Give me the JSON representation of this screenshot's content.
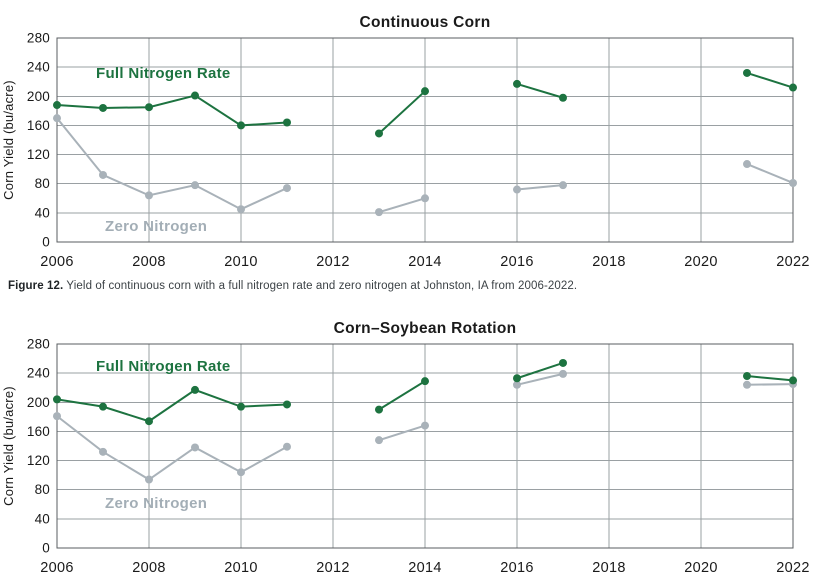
{
  "figure": {
    "caption_label": "Figure 12.",
    "caption_text": " Yield of continuous corn with a full nitrogen rate and zero nitrogen at Johnston, IA from 2006-2022."
  },
  "colors": {
    "full_nitrogen": "#1d7340",
    "zero_nitrogen": "#a9b2b9",
    "zero_nitrogen_label": "#a3aeb6",
    "grid": "#9aa0a3",
    "plot_border": "#595d60",
    "text": "#1a1a1a",
    "caption": "#3c4246"
  },
  "chart_data": [
    {
      "type": "line",
      "title": "Continuous Corn",
      "ylabel": "Corn Yield (bu/acre)",
      "xlabel": "",
      "ylim": [
        0,
        280
      ],
      "ytick_step": 40,
      "xticks": [
        2006,
        2008,
        2010,
        2012,
        2014,
        2016,
        2018,
        2020,
        2022
      ],
      "grid": true,
      "legend_position": "inline-annotations",
      "series": [
        {
          "name": "Full Nitrogen Rate",
          "color_key": "full_nitrogen",
          "points": [
            [
              2006,
              188
            ],
            [
              2007,
              184
            ],
            [
              2008,
              185
            ],
            [
              2009,
              201
            ],
            [
              2010,
              160
            ],
            [
              2011,
              164
            ],
            [
              2013,
              149
            ],
            [
              2014,
              207
            ],
            [
              2016,
              217
            ],
            [
              2017,
              198
            ],
            [
              2021,
              232
            ],
            [
              2022,
              212
            ]
          ]
        },
        {
          "name": "Zero Nitrogen",
          "color_key": "zero_nitrogen",
          "points": [
            [
              2006,
              170
            ],
            [
              2007,
              92
            ],
            [
              2008,
              64
            ],
            [
              2009,
              78
            ],
            [
              2010,
              45
            ],
            [
              2011,
              74
            ],
            [
              2013,
              41
            ],
            [
              2014,
              60
            ],
            [
              2016,
              72
            ],
            [
              2017,
              78
            ],
            [
              2021,
              107
            ],
            [
              2022,
              81
            ]
          ]
        }
      ]
    },
    {
      "type": "line",
      "title": "Corn–Soybean Rotation",
      "ylabel": "Corn Yield (bu/acre)",
      "xlabel": "",
      "ylim": [
        0,
        280
      ],
      "ytick_step": 40,
      "xticks": [
        2006,
        2008,
        2010,
        2012,
        2014,
        2016,
        2018,
        2020,
        2022
      ],
      "grid": true,
      "legend_position": "inline-annotations",
      "series": [
        {
          "name": "Full Nitrogen Rate",
          "color_key": "full_nitrogen",
          "points": [
            [
              2006,
              204
            ],
            [
              2007,
              194
            ],
            [
              2008,
              174
            ],
            [
              2009,
              217
            ],
            [
              2010,
              194
            ],
            [
              2011,
              197
            ],
            [
              2013,
              190
            ],
            [
              2014,
              229
            ],
            [
              2016,
              233
            ],
            [
              2017,
              254
            ],
            [
              2021,
              236
            ],
            [
              2022,
              230
            ]
          ]
        },
        {
          "name": "Zero Nitrogen",
          "color_key": "zero_nitrogen",
          "points": [
            [
              2006,
              181
            ],
            [
              2007,
              132
            ],
            [
              2008,
              94
            ],
            [
              2009,
              138
            ],
            [
              2010,
              104
            ],
            [
              2011,
              139
            ],
            [
              2013,
              148
            ],
            [
              2014,
              168
            ],
            [
              2016,
              224
            ],
            [
              2017,
              239
            ],
            [
              2021,
              224
            ],
            [
              2022,
              225
            ]
          ]
        }
      ]
    }
  ]
}
